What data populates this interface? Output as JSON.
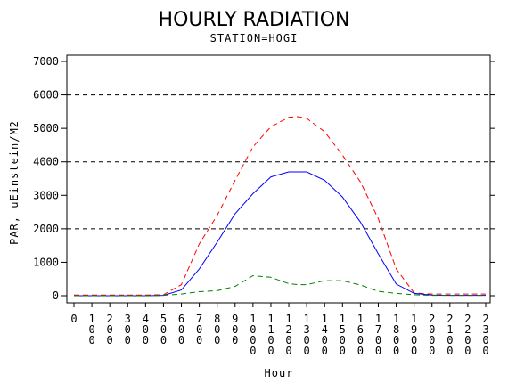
{
  "chart_data": {
    "type": "line",
    "title": "HOURLY RADIATION",
    "subtitle": "STATION=HOGI",
    "xlabel": "Hour",
    "ylabel": "PAR, uEinstein/M2",
    "xlim": [
      0,
      2300
    ],
    "ylim": [
      0,
      7000
    ],
    "x_ticks": [
      0,
      100,
      200,
      300,
      400,
      500,
      600,
      700,
      800,
      900,
      1000,
      1100,
      1200,
      1300,
      1400,
      1500,
      1600,
      1700,
      1800,
      1900,
      2000,
      2100,
      2200,
      2300
    ],
    "y_ticks": [
      0,
      1000,
      2000,
      3000,
      4000,
      5000,
      6000,
      7000
    ],
    "y_gridlines": [
      2000,
      4000,
      6000
    ],
    "grid": "dashed horizontal at 2000, 4000, 6000",
    "x": [
      0,
      100,
      200,
      300,
      400,
      500,
      600,
      700,
      800,
      900,
      1000,
      1100,
      1200,
      1250,
      1300,
      1400,
      1500,
      1600,
      1700,
      1800,
      1900,
      2000,
      2100,
      2200,
      2300
    ],
    "series": [
      {
        "color": "#ff0000",
        "style": "dashed",
        "values": [
          20,
          20,
          20,
          20,
          20,
          30,
          330,
          1550,
          2400,
          3450,
          4450,
          5050,
          5330,
          5350,
          5300,
          4900,
          4200,
          3400,
          2300,
          800,
          80,
          50,
          50,
          50,
          50
        ]
      },
      {
        "color": "#0000ff",
        "style": "solid",
        "values": [
          0,
          0,
          0,
          0,
          0,
          10,
          170,
          800,
          1600,
          2450,
          3050,
          3550,
          3700,
          3700,
          3700,
          3450,
          2950,
          2200,
          1250,
          350,
          70,
          20,
          10,
          10,
          10
        ]
      },
      {
        "color": "#008000",
        "style": "dashed",
        "values": [
          0,
          0,
          0,
          0,
          0,
          10,
          50,
          120,
          150,
          280,
          600,
          550,
          360,
          330,
          330,
          450,
          450,
          320,
          130,
          70,
          30,
          10,
          10,
          10,
          10
        ]
      }
    ]
  }
}
